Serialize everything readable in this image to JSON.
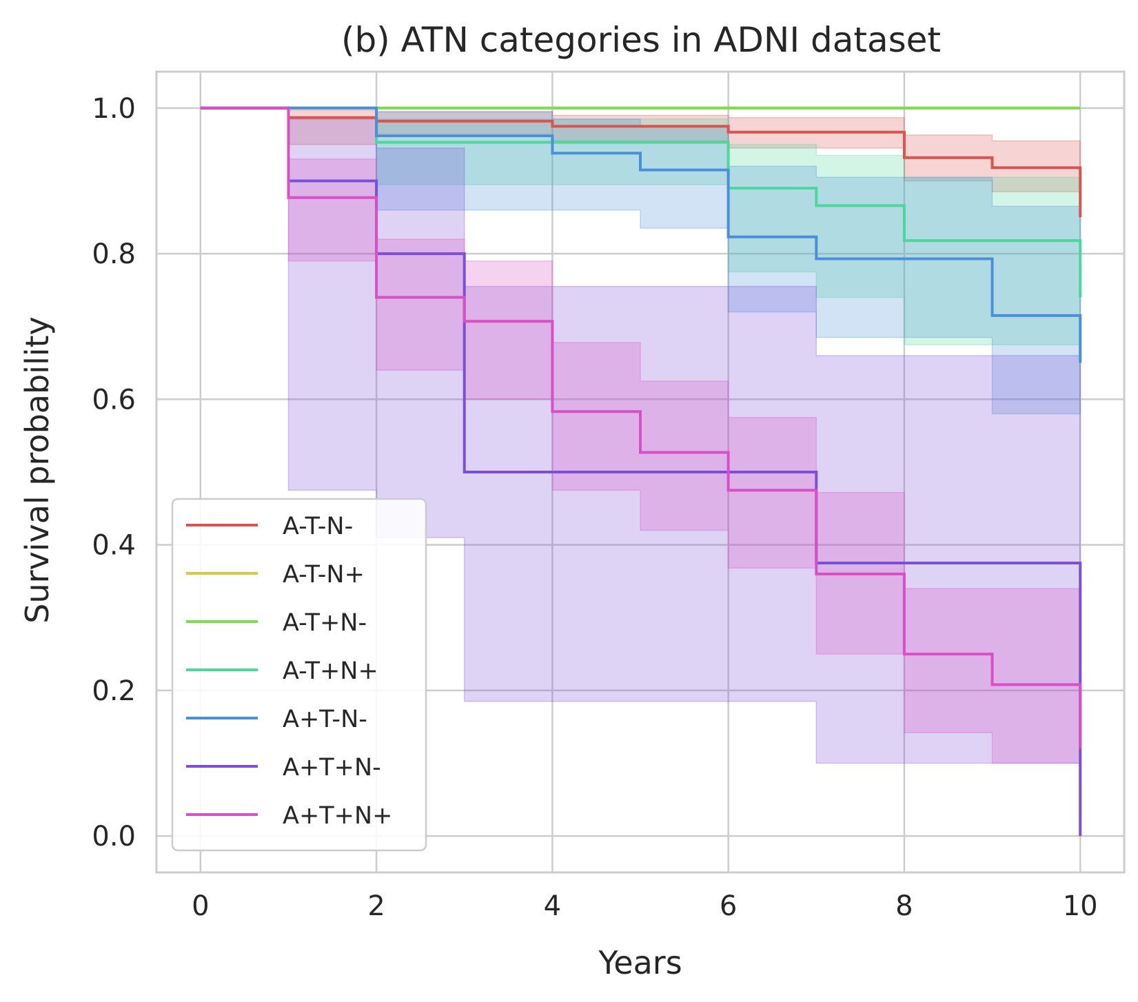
{
  "chart_data": {
    "type": "line",
    "subtype": "step-survival",
    "title": "(b) ATN categories in ADNI dataset",
    "xlabel": "Years",
    "ylabel": "Survival probability",
    "xlim": [
      -0.5,
      10.5
    ],
    "ylim": [
      -0.05,
      1.05
    ],
    "x_ticks": [
      "0",
      "2",
      "4",
      "6",
      "8",
      "10"
    ],
    "y_ticks": [
      "0.0",
      "0.2",
      "0.4",
      "0.6",
      "0.8",
      "1.0"
    ],
    "grid": true,
    "legend_position": "lower-left",
    "series": [
      {
        "name": "A-T-N-",
        "color": "#d9534f",
        "x": [
          0,
          1,
          2,
          4,
          6,
          8,
          9,
          10
        ],
        "y": [
          1.0,
          0.987,
          0.982,
          0.975,
          0.967,
          0.932,
          0.918,
          0.85
        ],
        "lower": [
          1.0,
          0.95,
          0.965,
          0.955,
          0.945,
          0.9,
          0.885,
          0.85
        ],
        "upper": [
          1.0,
          0.997,
          0.995,
          0.99,
          0.987,
          0.963,
          0.955,
          0.955
        ]
      },
      {
        "name": "A-T-N+",
        "color": "#d4c94a",
        "x": [
          0,
          10
        ],
        "y": [
          1.0,
          1.0
        ],
        "lower": [
          1.0,
          1.0
        ],
        "upper": [
          1.0,
          1.0
        ]
      },
      {
        "name": "A-T+N-",
        "color": "#7ed957",
        "x": [
          0,
          10
        ],
        "y": [
          1.0,
          1.0
        ],
        "lower": [
          1.0,
          1.0
        ],
        "upper": [
          1.0,
          1.0
        ]
      },
      {
        "name": "A-T+N+",
        "color": "#4fd69c",
        "x": [
          0,
          2,
          6,
          7,
          8,
          10
        ],
        "y": [
          1.0,
          0.953,
          0.89,
          0.866,
          0.818,
          0.74
        ],
        "lower": [
          1.0,
          0.895,
          0.775,
          0.74,
          0.675,
          0.675
        ],
        "upper": [
          1.0,
          0.985,
          0.95,
          0.935,
          0.905,
          0.905
        ]
      },
      {
        "name": "A+T-N-",
        "color": "#4a90d9",
        "x": [
          0,
          2,
          4,
          5,
          6,
          7,
          9,
          10
        ],
        "y": [
          1.0,
          0.962,
          0.938,
          0.915,
          0.823,
          0.793,
          0.715,
          0.65
        ],
        "lower": [
          1.0,
          0.86,
          0.86,
          0.835,
          0.72,
          0.685,
          0.58,
          0.58
        ],
        "upper": [
          1.0,
          0.995,
          0.985,
          0.975,
          0.92,
          0.905,
          0.865,
          0.865
        ]
      },
      {
        "name": "A+T+N-",
        "color": "#7b4fd9",
        "x": [
          0,
          1,
          2,
          3,
          7,
          10
        ],
        "y": [
          1.0,
          0.9,
          0.8,
          0.5,
          0.375,
          0.0
        ],
        "lower": [
          1.0,
          0.475,
          0.41,
          0.185,
          0.1,
          0.1
        ],
        "upper": [
          1.0,
          0.985,
          0.945,
          0.755,
          0.66,
          0.66
        ]
      },
      {
        "name": "A+T+N+",
        "color": "#d94fc4",
        "x": [
          0,
          1,
          2,
          3,
          4,
          5,
          6,
          7,
          8,
          9,
          10
        ],
        "y": [
          1.0,
          0.877,
          0.74,
          0.707,
          0.583,
          0.527,
          0.475,
          0.36,
          0.25,
          0.208,
          0.12
        ],
        "lower": [
          1.0,
          0.79,
          0.64,
          0.6,
          0.475,
          0.42,
          0.368,
          0.25,
          0.142,
          0.1,
          0.1
        ],
        "upper": [
          1.0,
          0.93,
          0.82,
          0.79,
          0.678,
          0.625,
          0.575,
          0.472,
          0.34,
          0.34,
          0.34
        ]
      }
    ]
  }
}
